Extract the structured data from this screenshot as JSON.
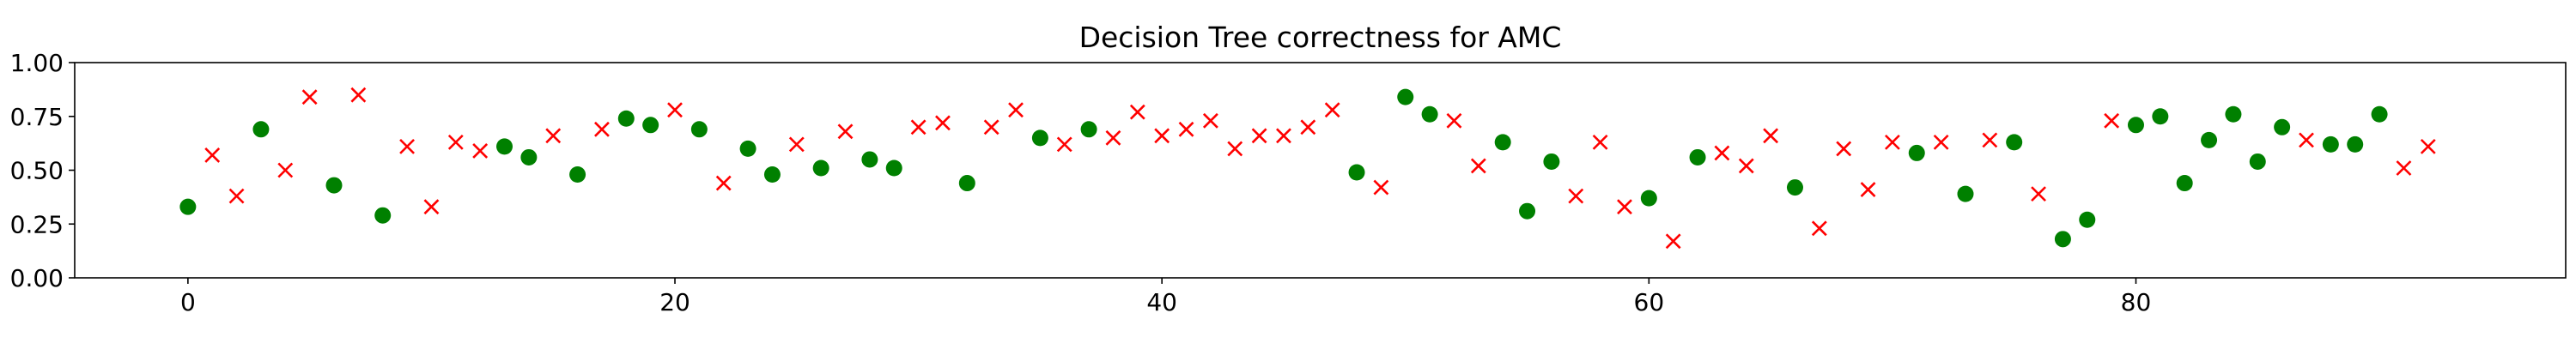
{
  "chart_data": {
    "type": "scatter",
    "title": "Decision Tree correctness for AMC",
    "xlabel": "",
    "ylabel": "",
    "xlim": [
      -4.65,
      97.65
    ],
    "ylim": [
      0.0,
      1.0
    ],
    "xticks": [
      0,
      20,
      40,
      60,
      80
    ],
    "xtick_labels": [
      "0",
      "20",
      "40",
      "60",
      "80"
    ],
    "yticks": [
      0.0,
      0.25,
      0.5,
      0.75,
      1.0
    ],
    "ytick_labels": [
      "0.00",
      "0.25",
      "0.50",
      "0.75",
      "1.00"
    ],
    "grid": false,
    "legend": "none",
    "colors": {
      "correct": "#008000",
      "incorrect": "#ff0000"
    },
    "series": [
      {
        "marker": "circle",
        "color": "#008000",
        "x": [
          0,
          3,
          6,
          8,
          13,
          14,
          16,
          18,
          19,
          21,
          23,
          24,
          26,
          28,
          29,
          32,
          35,
          37,
          48,
          50,
          51,
          54,
          55,
          56,
          60,
          62,
          66,
          71,
          73,
          75,
          77,
          78,
          80,
          81,
          82,
          83,
          84,
          85,
          86,
          88,
          89,
          90
        ],
        "y": [
          0.33,
          0.69,
          0.43,
          0.29,
          0.61,
          0.56,
          0.48,
          0.74,
          0.71,
          0.69,
          0.6,
          0.48,
          0.51,
          0.55,
          0.51,
          0.44,
          0.65,
          0.69,
          0.49,
          0.84,
          0.76,
          0.63,
          0.31,
          0.54,
          0.37,
          0.56,
          0.42,
          0.58,
          0.39,
          0.63,
          0.18,
          0.27,
          0.71,
          0.75,
          0.44,
          0.64,
          0.76,
          0.54,
          0.7,
          0.62,
          0.62,
          0.76
        ]
      },
      {
        "marker": "x",
        "color": "#ff0000",
        "x": [
          1,
          2,
          4,
          5,
          7,
          9,
          10,
          11,
          12,
          15,
          17,
          20,
          22,
          25,
          27,
          30,
          31,
          33,
          34,
          36,
          38,
          39,
          40,
          41,
          42,
          43,
          44,
          45,
          46,
          47,
          49,
          52,
          53,
          57,
          58,
          59,
          61,
          63,
          64,
          65,
          67,
          68,
          69,
          70,
          72,
          74,
          76,
          79,
          87,
          91,
          92
        ],
        "y": [
          0.57,
          0.38,
          0.5,
          0.84,
          0.85,
          0.61,
          0.33,
          0.63,
          0.59,
          0.66,
          0.69,
          0.78,
          0.44,
          0.62,
          0.68,
          0.7,
          0.72,
          0.7,
          0.78,
          0.62,
          0.65,
          0.77,
          0.66,
          0.69,
          0.73,
          0.6,
          0.66,
          0.66,
          0.7,
          0.78,
          0.42,
          0.73,
          0.52,
          0.38,
          0.63,
          0.33,
          0.17,
          0.58,
          0.52,
          0.66,
          0.23,
          0.6,
          0.41,
          0.63,
          0.63,
          0.64,
          0.39,
          0.73,
          0.64,
          0.51,
          0.61
        ]
      }
    ]
  }
}
